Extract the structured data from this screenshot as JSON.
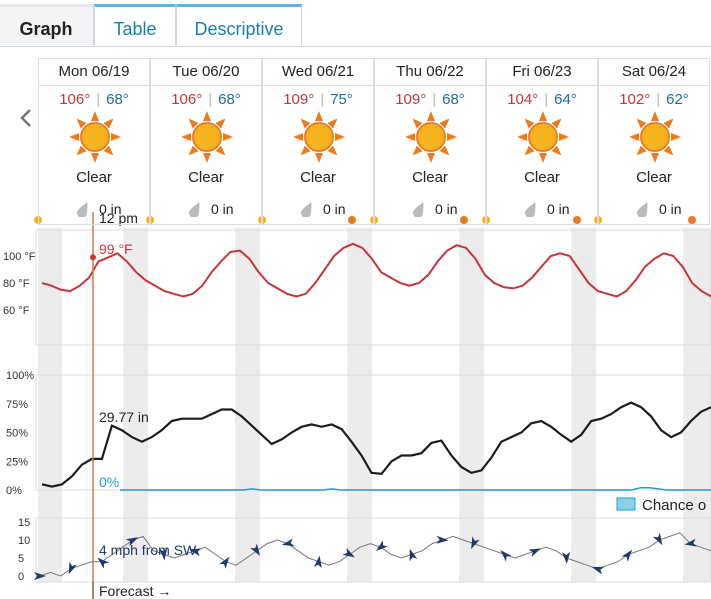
{
  "tabs": [
    {
      "label": "Graph",
      "active": true
    },
    {
      "label": "Table",
      "active": false
    },
    {
      "label": "Descriptive",
      "active": false
    }
  ],
  "days": [
    {
      "date": "Mon 06/19",
      "high": "106°",
      "low": "68°",
      "cond": "Clear",
      "precip": "0 in"
    },
    {
      "date": "Tue 06/20",
      "high": "106°",
      "low": "68°",
      "cond": "Clear",
      "precip": "0 in"
    },
    {
      "date": "Wed 06/21",
      "high": "109°",
      "low": "75°",
      "cond": "Clear",
      "precip": "0 in"
    },
    {
      "date": "Thu 06/22",
      "high": "109°",
      "low": "68°",
      "cond": "Clear",
      "precip": "0 in"
    },
    {
      "date": "Fri 06/23",
      "high": "104°",
      "low": "64°",
      "cond": "Clear",
      "precip": "0 in"
    },
    {
      "date": "Sat 06/24",
      "high": "102°",
      "low": "62°",
      "cond": "Clear",
      "precip": "0 in"
    }
  ],
  "cursor": {
    "time": "12 pm",
    "temp": "99 °F",
    "pressure": "29.77 in",
    "chance": "0%",
    "wind": "4 mph from SW"
  },
  "temp_axis": [
    "100 °F",
    "80 °F",
    "60 °F"
  ],
  "pct_axis": [
    "100%",
    "75%",
    "50%",
    "25%",
    "0%"
  ],
  "wind_axis": [
    "15",
    "10",
    "5",
    "0"
  ],
  "legend_label": "Chance o",
  "forecast_label": "Forecast →",
  "colors": {
    "temp": "#c6353a",
    "pressure": "#1c1c1c",
    "precip": "#1a9fd0",
    "wind": "#1e3a6e",
    "cursor": "#d4783a",
    "high": "#c6353a",
    "low": "#1a6ea0"
  },
  "chart_data": [
    {
      "type": "line",
      "series": [
        {
          "values": [
            80,
            78,
            75,
            74,
            78,
            84,
            96,
            99,
            102,
            96,
            88,
            82,
            78,
            74,
            72,
            70,
            72,
            78,
            88,
            96,
            103,
            104,
            98,
            88,
            80,
            76,
            72,
            70,
            72,
            80,
            90,
            100,
            106,
            109,
            106,
            98,
            88,
            84,
            80,
            78,
            80,
            86,
            96,
            104,
            108,
            106,
            98,
            86,
            80,
            77,
            76,
            78,
            84,
            92,
            100,
            102,
            100,
            90,
            80,
            74,
            72,
            70,
            74,
            82,
            92,
            98,
            102,
            100,
            92,
            80,
            74,
            70
          ]
        }
      ],
      "yticks": [
        "100 °F",
        "80 °F",
        "60 °F"
      ]
    },
    {
      "type": "line",
      "series": [
        {
          "values": [
            5,
            3,
            5,
            12,
            22,
            27,
            27,
            56,
            52,
            46,
            42,
            46,
            52,
            60,
            62,
            62,
            62,
            66,
            70,
            70,
            64,
            56,
            48,
            40,
            44,
            50,
            55,
            57,
            55,
            57,
            53,
            42,
            30,
            15,
            14,
            25,
            30,
            30,
            32,
            41,
            43,
            30,
            20,
            15,
            17,
            28,
            42,
            46,
            50,
            58,
            60,
            55,
            48,
            42,
            48,
            60,
            62,
            66,
            72,
            76,
            72,
            64,
            52,
            46,
            50,
            60,
            68,
            72
          ]
        },
        {
          "values": [
            0,
            0,
            0,
            0,
            0,
            0,
            0,
            0,
            0,
            0,
            0,
            0,
            0,
            0,
            0,
            1,
            0,
            0,
            0,
            0,
            0,
            0,
            0,
            0,
            1,
            0,
            0,
            0,
            0,
            0,
            0,
            0,
            0,
            0,
            0,
            0,
            0,
            0,
            0,
            0,
            0,
            0,
            0,
            0,
            0,
            0,
            0,
            0,
            0,
            0,
            0,
            0,
            0,
            0,
            0,
            0,
            0,
            0,
            0,
            2,
            2,
            1,
            0,
            0,
            0,
            0,
            0,
            0
          ]
        }
      ],
      "yticks": [
        "100%",
        "75%",
        "50%",
        "25%",
        "0%"
      ]
    },
    {
      "type": "line",
      "series": [
        {
          "values": [
            0,
            1,
            0,
            2,
            3,
            4,
            4,
            6,
            8,
            10,
            11,
            7,
            6,
            5,
            6,
            7,
            8,
            6,
            4,
            3,
            5,
            7,
            9,
            10,
            9,
            7,
            5,
            4,
            3,
            4,
            6,
            8,
            9,
            8,
            6,
            5,
            6,
            7,
            9,
            10,
            11,
            10,
            9,
            8,
            7,
            6,
            5,
            6,
            7,
            8,
            7,
            5,
            4,
            3,
            2,
            3,
            4,
            6,
            7,
            8,
            10,
            11,
            12,
            9,
            8,
            7
          ]
        }
      ],
      "yticks": [
        "15",
        "10",
        "5",
        "0"
      ]
    }
  ]
}
